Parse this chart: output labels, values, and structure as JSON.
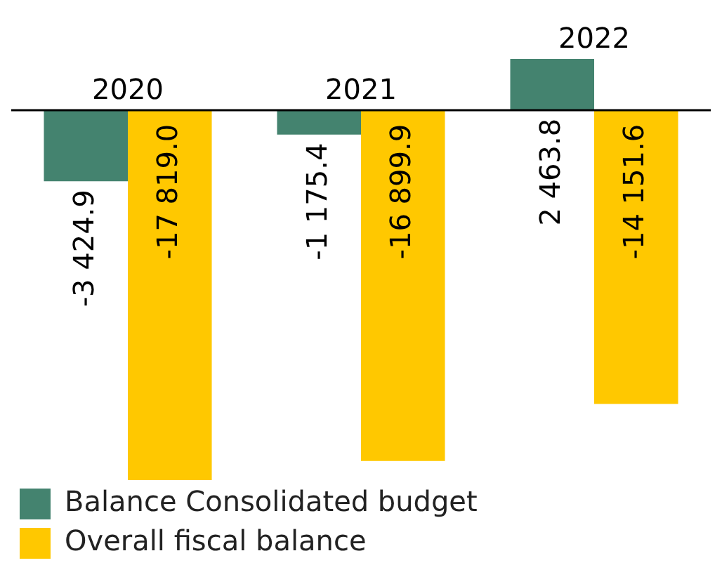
{
  "chart_data": {
    "type": "bar",
    "categories": [
      "2020",
      "2021",
      "2022"
    ],
    "series": [
      {
        "name": "Balance Consolidated budget",
        "color": "#44836f",
        "values": [
          -3424.9,
          -1175.4,
          2463.8
        ],
        "value_labels": [
          "-3 424.9",
          "-1 175.4",
          "2 463.8"
        ]
      },
      {
        "name": "Overall fiscal balance",
        "color": "#ffc800",
        "values": [
          -17819.0,
          -16899.9,
          -14151.6
        ],
        "value_labels": [
          "-17 819.0",
          "-16 899.9",
          "-14 151.6"
        ]
      }
    ],
    "legend": "bottom left"
  }
}
